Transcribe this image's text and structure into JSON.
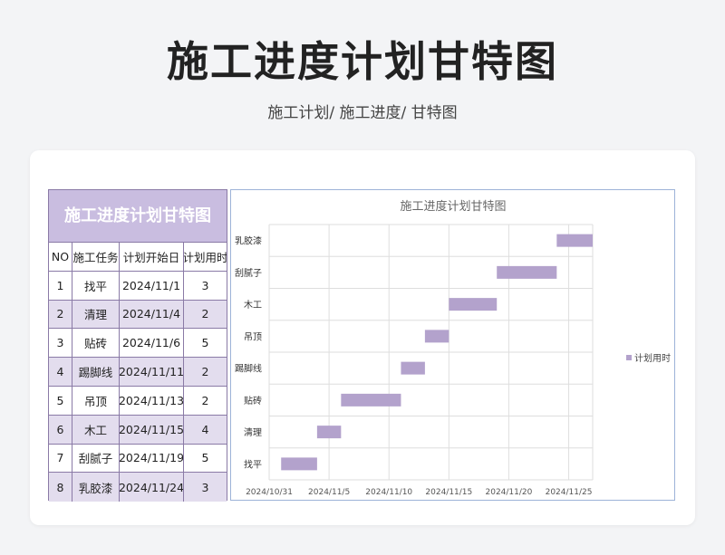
{
  "page": {
    "title": "施工进度计划甘特图",
    "breadcrumb": "施工计划/  施工进度/  甘特图"
  },
  "table": {
    "title": "施工进度计划甘特图",
    "headers": [
      "NO",
      "施工任务",
      "计划开始日",
      "计划用时"
    ],
    "rows": [
      [
        "1",
        "找平",
        "2024/11/1",
        "3"
      ],
      [
        "2",
        "清理",
        "2024/11/4",
        "2"
      ],
      [
        "3",
        "贴砖",
        "2024/11/6",
        "5"
      ],
      [
        "4",
        "踢脚线",
        "2024/11/11",
        "2"
      ],
      [
        "5",
        "吊顶",
        "2024/11/13",
        "2"
      ],
      [
        "6",
        "木工",
        "2024/11/15",
        "4"
      ],
      [
        "7",
        "刮腻子",
        "2024/11/19",
        "5"
      ],
      [
        "8",
        "乳胶漆",
        "2024/11/24",
        "3"
      ]
    ]
  },
  "colors": {
    "bar": "#b3a2cc",
    "header_bg": "#c9bde0",
    "alt_row": "#e3ddee",
    "border": "#8a7aa6"
  },
  "chart_data": {
    "type": "bar",
    "orientation": "horizontal-gantt",
    "title": "施工进度计划甘特图",
    "categories": [
      "找平",
      "清理",
      "贴砖",
      "踢脚线",
      "吊顶",
      "木工",
      "刮腻子",
      "乳胶漆"
    ],
    "series": [
      {
        "name": "计划用时",
        "start": [
          "2024/11/1",
          "2024/11/4",
          "2024/11/6",
          "2024/11/11",
          "2024/11/13",
          "2024/11/15",
          "2024/11/19",
          "2024/11/24"
        ],
        "values": [
          3,
          2,
          5,
          2,
          2,
          4,
          5,
          3
        ]
      }
    ],
    "x_ticks": [
      "2024/10/31",
      "2024/11/5",
      "2024/11/10",
      "2024/11/15",
      "2024/11/20",
      "2024/11/25"
    ],
    "xlim": [
      "2024/10/31",
      "2024/11/27"
    ],
    "grid": true,
    "legend_position": "right"
  }
}
